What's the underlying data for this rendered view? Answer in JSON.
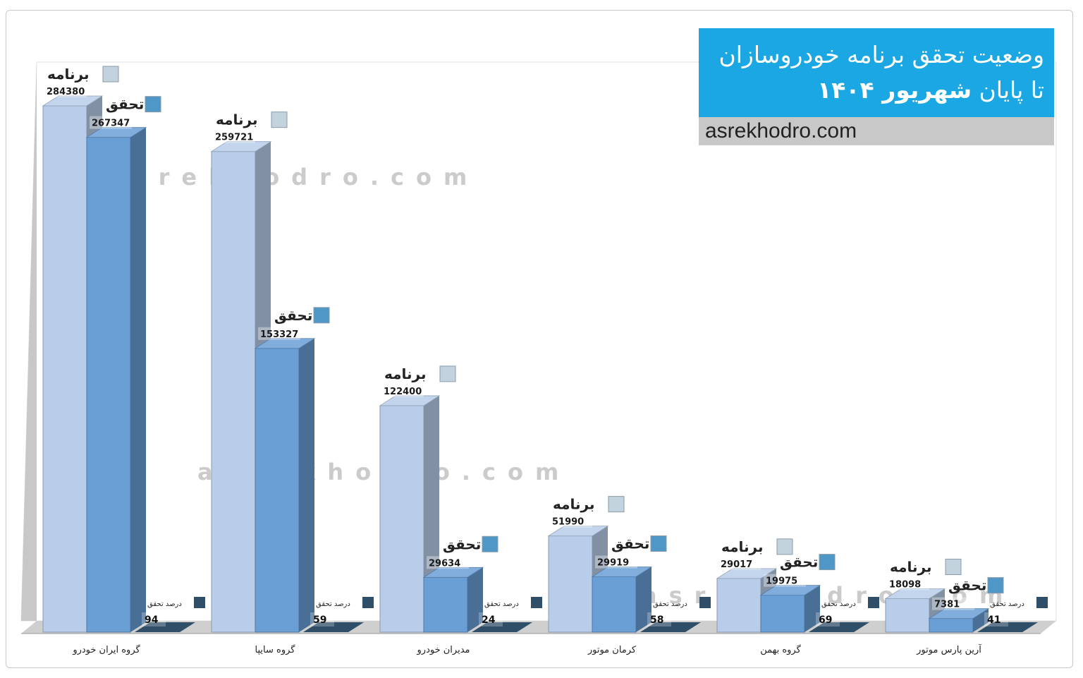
{
  "header": {
    "title_line1": "وضعیت تحقق برنامه خودروسازان",
    "title_line2_prefix": "تا پایان",
    "title_line2_bold": "شهریور ۱۴۰۴",
    "site": "asrekhodro.com"
  },
  "watermark": "asrekhodro.com",
  "colors": {
    "plan": "#b8cde9",
    "actual": "#6a9fd6",
    "percent": "#2f4e68",
    "title_bg": "#1aa7e3"
  },
  "chart_data": {
    "type": "bar",
    "categories": [
      "گروه ایران خودرو",
      "گروه سایپا",
      "مدیران خودرو",
      "کرمان موتور",
      "گروه بهمن",
      "آرین پارس موتور"
    ],
    "series": [
      {
        "name": "برنامه",
        "values": [
          284380,
          259721,
          122400,
          51990,
          29017,
          18098
        ]
      },
      {
        "name": "تحقق",
        "values": [
          267347,
          153327,
          29634,
          29919,
          19975,
          7381
        ]
      },
      {
        "name": "درصد تحقق",
        "values": [
          94,
          59,
          24,
          58,
          69,
          41
        ]
      }
    ],
    "ylim": [
      0,
      284380
    ],
    "grid": false,
    "legend": "per-bar labels"
  }
}
